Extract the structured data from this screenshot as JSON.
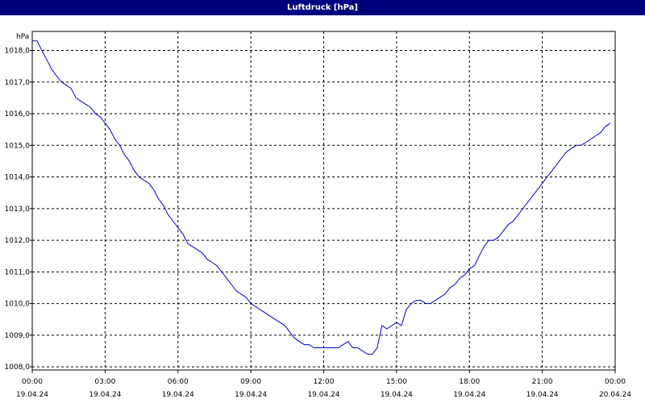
{
  "window": {
    "title": "Luftdruck [hPa]",
    "title_bar_color": "#00007f"
  },
  "chart_data": {
    "type": "line",
    "title": "Luftdruck [hPa]",
    "ylabel": "hPa",
    "xlabel": "",
    "ylim": [
      1007.9,
      1018.6
    ],
    "xlim_hours": [
      0,
      24
    ],
    "grid": true,
    "grid_style": "dashed",
    "y_ticks": [
      "1008,0",
      "1009,0",
      "1010,0",
      "1011,0",
      "1012,0",
      "1013,0",
      "1014,0",
      "1015,0",
      "1016,0",
      "1017,0",
      "1018,0"
    ],
    "x_ticks": [
      {
        "time": "00:00",
        "date": "19.04.24"
      },
      {
        "time": "03:00",
        "date": "19.04.24"
      },
      {
        "time": "06:00",
        "date": "19.04.24"
      },
      {
        "time": "09:00",
        "date": "19.04.24"
      },
      {
        "time": "12:00",
        "date": "19.04.24"
      },
      {
        "time": "15:00",
        "date": "19.04.24"
      },
      {
        "time": "18:00",
        "date": "19.04.24"
      },
      {
        "time": "21:00",
        "date": "19.04.24"
      },
      {
        "time": "00:00",
        "date": "20.04.24"
      }
    ],
    "line_color": "#0000cc",
    "series": [
      {
        "x": [
          0.0,
          0.2,
          0.4,
          0.6,
          0.8,
          1.0,
          1.2,
          1.4,
          1.6,
          1.8,
          2.0,
          2.2,
          2.4,
          2.6,
          2.8,
          3.0,
          3.2,
          3.4,
          3.6,
          3.8,
          4.0,
          4.2,
          4.4,
          4.6,
          4.8,
          5.0,
          5.2,
          5.4,
          5.6,
          5.8,
          6.0,
          6.2,
          6.4,
          6.6,
          6.8,
          7.0,
          7.2,
          7.4,
          7.6,
          7.8,
          8.0,
          8.2,
          8.4,
          8.6,
          8.8,
          9.0,
          9.2,
          9.4,
          9.6,
          9.8,
          10.0,
          10.2,
          10.4,
          10.6,
          10.8,
          11.0,
          11.2,
          11.4,
          11.6,
          11.8,
          12.0,
          12.2,
          12.4,
          12.6,
          12.8,
          13.0,
          13.2,
          13.4,
          13.6,
          13.8,
          14.0,
          14.2,
          14.4,
          14.6,
          14.8,
          15.0,
          15.2,
          15.4,
          15.6,
          15.8,
          16.0,
          16.2,
          16.4,
          16.6,
          16.8,
          17.0,
          17.2,
          17.4,
          17.6,
          17.8,
          18.0,
          18.2,
          18.4,
          18.6,
          18.8,
          19.0,
          19.2,
          19.4,
          19.6,
          19.8,
          20.0,
          20.2,
          20.4,
          20.6,
          20.8,
          21.0,
          21.2,
          21.4,
          21.6,
          21.8,
          22.0,
          22.2,
          22.4,
          22.6,
          22.8,
          23.0,
          23.2,
          23.4,
          23.6,
          23.8
        ],
        "y": [
          1018.3,
          1018.3,
          1018.0,
          1017.7,
          1017.4,
          1017.2,
          1017.0,
          1016.9,
          1016.8,
          1016.5,
          1016.4,
          1016.3,
          1016.2,
          1016.0,
          1015.9,
          1015.7,
          1015.5,
          1015.2,
          1015.0,
          1014.7,
          1014.5,
          1014.2,
          1014.0,
          1013.9,
          1013.8,
          1013.6,
          1013.3,
          1013.1,
          1012.8,
          1012.6,
          1012.4,
          1012.2,
          1011.9,
          1011.8,
          1011.7,
          1011.6,
          1011.4,
          1011.3,
          1011.2,
          1011.0,
          1010.8,
          1010.6,
          1010.4,
          1010.3,
          1010.2,
          1010.0,
          1009.9,
          1009.8,
          1009.7,
          1009.6,
          1009.5,
          1009.4,
          1009.3,
          1009.1,
          1008.9,
          1008.8,
          1008.7,
          1008.7,
          1008.6,
          1008.6,
          1008.6,
          1008.6,
          1008.6,
          1008.6,
          1008.7,
          1008.8,
          1008.6,
          1008.6,
          1008.5,
          1008.4,
          1008.4,
          1008.6,
          1009.3,
          1009.2,
          1009.3,
          1009.4,
          1009.3,
          1009.8,
          1010.0,
          1010.1,
          1010.1,
          1010.0,
          1010.0,
          1010.1,
          1010.2,
          1010.3,
          1010.5,
          1010.6,
          1010.8,
          1010.9,
          1011.1,
          1011.2,
          1011.5,
          1011.8,
          1012.0,
          1012.0,
          1012.1,
          1012.3,
          1012.5,
          1012.6,
          1012.8,
          1013.0,
          1013.2,
          1013.4,
          1013.6,
          1013.8,
          1014.0,
          1014.2,
          1014.4,
          1014.6,
          1014.8,
          1014.9,
          1015.0,
          1015.0,
          1015.1,
          1015.2,
          1015.3,
          1015.4,
          1015.6,
          1015.7
        ]
      }
    ]
  }
}
